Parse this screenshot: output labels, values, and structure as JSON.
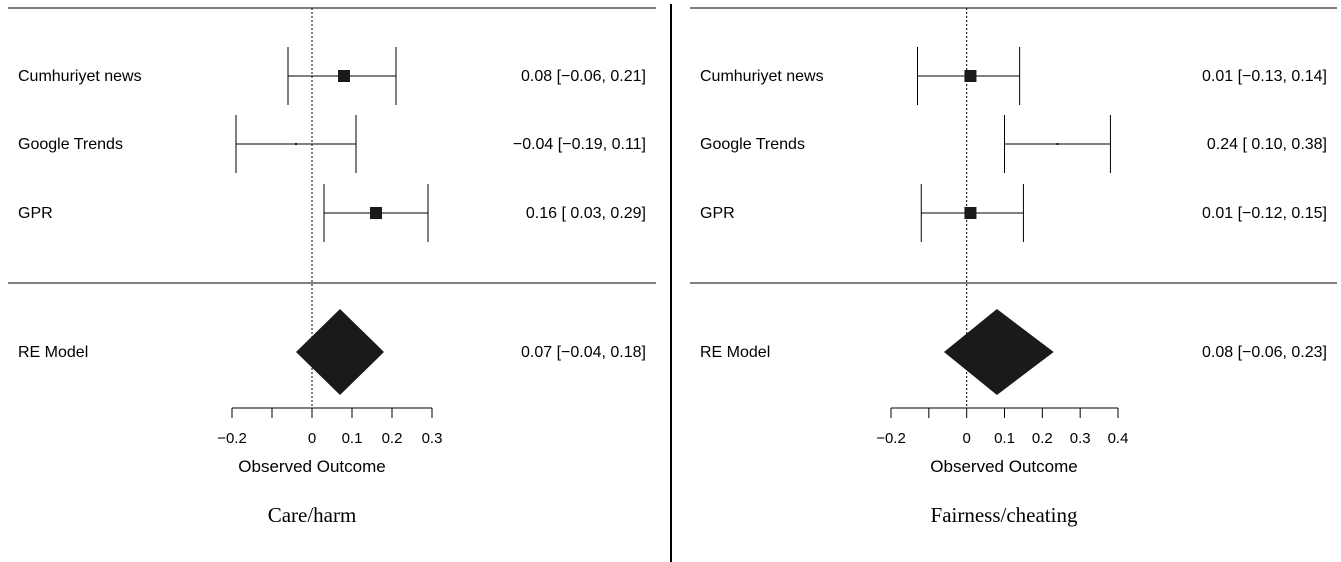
{
  "chart_data": [
    {
      "type": "forest",
      "panel_label": "Care/harm",
      "xlabel": "Observed Outcome",
      "xticks": [
        -0.2,
        0,
        0.1,
        0.2,
        0.3
      ],
      "xtick_labels": [
        "−0.2",
        "0",
        "0.1",
        "0.2",
        "0.3"
      ],
      "xlim": [
        -0.2,
        0.3
      ],
      "reference_line": 0,
      "studies": [
        {
          "label": "Cumhuriyet news",
          "estimate": 0.08,
          "ci": [
            -0.06,
            0.21
          ],
          "text": "0.08 [−0.06, 0.21]"
        },
        {
          "label": "Google Trends",
          "estimate": -0.04,
          "ci": [
            -0.19,
            0.11
          ],
          "text": "−0.04 [−0.19, 0.11]"
        },
        {
          "label": "GPR",
          "estimate": 0.16,
          "ci": [
            0.03,
            0.29
          ],
          "text": "0.16 [ 0.03, 0.29]"
        }
      ],
      "summary": {
        "label": "RE Model",
        "estimate": 0.07,
        "ci": [
          -0.04,
          0.18
        ],
        "text": "0.07 [−0.04, 0.18]"
      }
    },
    {
      "type": "forest",
      "panel_label": "Fairness/cheating",
      "xlabel": "Observed Outcome",
      "xticks": [
        -0.2,
        0,
        0.1,
        0.2,
        0.3,
        0.4
      ],
      "xtick_labels": [
        "−0.2",
        "0",
        "0.1",
        "0.2",
        "0.3",
        "0.4"
      ],
      "xlim": [
        -0.2,
        0.4
      ],
      "reference_line": 0,
      "studies": [
        {
          "label": "Cumhuriyet news",
          "estimate": 0.01,
          "ci": [
            -0.13,
            0.14
          ],
          "text": "0.01 [−0.13, 0.14]"
        },
        {
          "label": "Google Trends",
          "estimate": 0.24,
          "ci": [
            0.1,
            0.38
          ],
          "text": "0.24 [ 0.10, 0.38]"
        },
        {
          "label": "GPR",
          "estimate": 0.01,
          "ci": [
            -0.12,
            0.15
          ],
          "text": "0.01 [−0.12, 0.15]"
        }
      ],
      "summary": {
        "label": "RE Model",
        "estimate": 0.08,
        "ci": [
          -0.06,
          0.23
        ],
        "text": "0.08 [−0.06, 0.23]"
      }
    }
  ]
}
